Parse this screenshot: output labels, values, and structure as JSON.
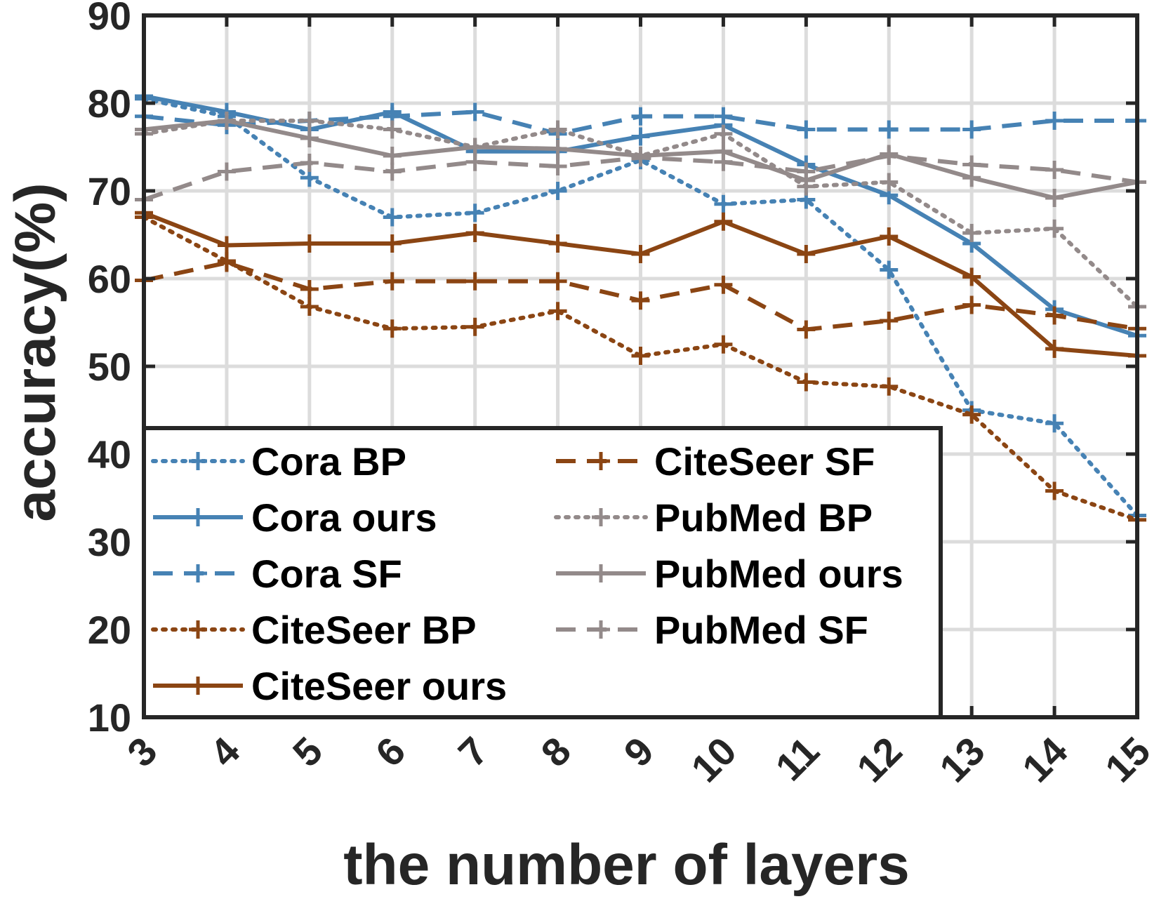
{
  "chart_data": {
    "type": "line",
    "xlabel": "the number of layers",
    "ylabel": "accuracy(%)",
    "ylim": [
      10,
      90
    ],
    "yticks": [
      10,
      20,
      30,
      40,
      50,
      60,
      70,
      80,
      90
    ],
    "x": [
      3,
      4,
      5,
      6,
      7,
      8,
      9,
      10,
      11,
      12,
      13,
      14,
      15
    ],
    "grid": true,
    "legend_position": "bottom-left",
    "series": [
      {
        "name": "Cora BP",
        "color": "#4682b4",
        "style": "dotted",
        "values": [
          80.5,
          78.5,
          71.5,
          67,
          67.5,
          70,
          73.5,
          68.5,
          69,
          61,
          45,
          43.5,
          33
        ]
      },
      {
        "name": "Cora ours",
        "color": "#4682b4",
        "style": "solid",
        "values": [
          80.8,
          79,
          77,
          79,
          74.5,
          74.5,
          76.2,
          77.5,
          73,
          69.5,
          64,
          56.5,
          53.5
        ]
      },
      {
        "name": "Cora SF",
        "color": "#4682b4",
        "style": "dashed",
        "values": [
          78.5,
          77.5,
          78,
          78.5,
          79,
          76.5,
          78.5,
          78.5,
          77,
          77,
          77,
          78,
          78
        ]
      },
      {
        "name": "CiteSeer BP",
        "color": "#8b4513",
        "style": "dotted",
        "values": [
          67,
          62,
          56.8,
          54.3,
          54.5,
          56.3,
          51.2,
          52.5,
          48.2,
          47.7,
          44.5,
          35.8,
          32.5
        ]
      },
      {
        "name": "CiteSeer ours",
        "color": "#8b4513",
        "style": "solid",
        "values": [
          67.5,
          63.8,
          64,
          64,
          65.2,
          64,
          62.8,
          66.5,
          62.8,
          64.8,
          60.2,
          52,
          51.2
        ]
      },
      {
        "name": "CiteSeer SF",
        "color": "#8b4513",
        "style": "dashed",
        "values": [
          59.8,
          61.8,
          58.8,
          59.7,
          59.7,
          59.7,
          57.5,
          59.3,
          54.2,
          55.2,
          57,
          55.8,
          54.3
        ]
      },
      {
        "name": "PubMed BP",
        "color": "#938a8a",
        "style": "dotted",
        "values": [
          76.5,
          78,
          78,
          77,
          75,
          77,
          74,
          76.5,
          70.5,
          71,
          65.2,
          65.7,
          56.8
        ]
      },
      {
        "name": "PubMed ours",
        "color": "#938a8a",
        "style": "solid",
        "values": [
          77,
          78,
          76,
          74,
          75,
          74.8,
          74,
          74.5,
          71.2,
          74.2,
          71.5,
          69.2,
          71
        ]
      },
      {
        "name": "PubMed SF",
        "color": "#938a8a",
        "style": "dashed",
        "values": [
          69,
          72.2,
          73.2,
          72.2,
          73.3,
          72.8,
          73.8,
          73.3,
          72.2,
          74,
          73,
          72.4,
          71
        ]
      }
    ]
  }
}
